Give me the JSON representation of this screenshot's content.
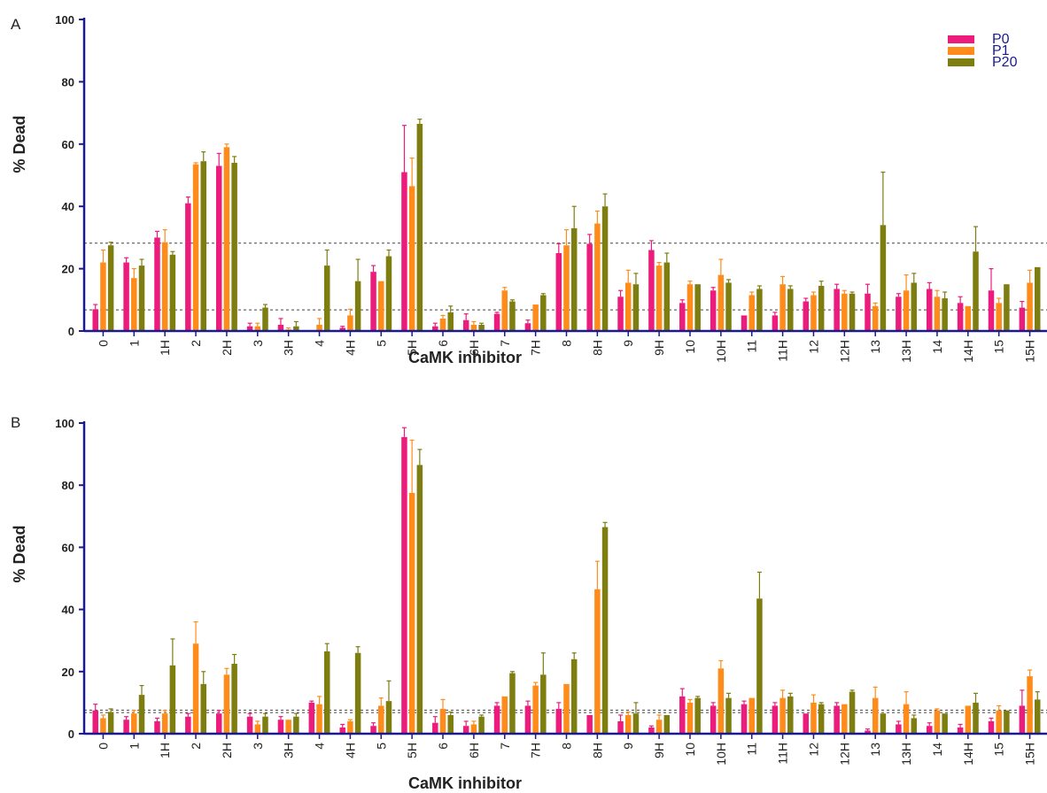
{
  "colors": {
    "axis": "#1a1a8c",
    "series": [
      "#ec1c7c",
      "#ff8c1a",
      "#7d7d10"
    ],
    "error": "#ec1c7c"
  },
  "chart_data": [
    {
      "type": "bar",
      "panel": "A",
      "ylabel": "% Dead",
      "xlabel": "CaMK inhibitor",
      "ylim": [
        0,
        100
      ],
      "yticks": [
        0,
        20,
        40,
        60,
        80,
        100
      ],
      "legend_position": "top-right",
      "reference_lines": [
        28.2,
        6.8
      ],
      "categories": [
        "0",
        "1",
        "1H",
        "2",
        "2H",
        "3",
        "3H",
        "4",
        "4H",
        "5",
        "5H",
        "6",
        "6H",
        "7",
        "7H",
        "8",
        "8H",
        "9",
        "9H",
        "10",
        "10H",
        "11",
        "11H",
        "12",
        "12H",
        "13",
        "13H",
        "14",
        "14H",
        "15",
        "15H"
      ],
      "series": [
        {
          "name": "P0",
          "values": [
            7,
            22,
            30,
            41,
            53,
            1.5,
            2,
            0,
            1,
            19,
            51,
            1.5,
            3.5,
            5.5,
            2.5,
            25,
            28,
            11,
            26,
            9,
            13,
            5,
            5,
            9.5,
            13.5,
            12,
            11,
            13.5,
            9,
            13,
            7.5
          ],
          "errors": [
            1.5,
            1.5,
            2,
            2,
            4,
            1,
            2,
            0,
            0.5,
            2,
            15,
            1,
            2,
            0.5,
            1,
            3,
            3,
            2,
            3,
            1,
            1,
            0,
            1,
            1,
            1.5,
            3,
            1,
            2,
            2,
            7,
            2
          ]
        },
        {
          "name": "P1",
          "values": [
            22,
            17,
            28.5,
            53.5,
            59,
            1.5,
            0.5,
            2,
            5,
            16,
            46.5,
            4,
            2,
            13,
            8.5,
            27.5,
            34.5,
            15.5,
            21,
            15,
            18,
            11.5,
            15,
            11.5,
            12,
            8,
            13,
            11,
            8,
            9,
            15.5
          ],
          "errors": [
            4,
            3,
            4,
            0.5,
            1,
            1,
            0.5,
            2,
            2,
            0,
            9,
            1,
            1,
            1,
            0,
            5,
            4,
            4,
            1,
            1,
            5,
            1,
            2.5,
            1,
            1,
            1,
            5,
            2,
            0,
            1.5,
            4
          ]
        },
        {
          "name": "P20",
          "values": [
            27.5,
            21,
            24.5,
            54.5,
            54,
            7.5,
            1.5,
            21,
            16,
            24,
            66.5,
            6,
            2,
            9.5,
            11.5,
            33,
            40,
            15,
            22,
            15,
            15.5,
            13.5,
            13.5,
            14.5,
            12,
            34,
            15.5,
            10.5,
            25.5,
            15,
            20.5
          ],
          "errors": [
            1,
            2,
            1,
            3,
            2,
            1,
            1.5,
            5,
            7,
            2,
            1.5,
            2,
            0.5,
            0.5,
            0.5,
            7,
            4,
            3.5,
            3,
            0,
            1,
            1,
            1,
            1.5,
            0.5,
            17,
            3,
            2,
            8,
            0,
            0
          ]
        }
      ]
    },
    {
      "type": "bar",
      "panel": "B",
      "ylabel": "% Dead",
      "xlabel": "CaMK inhibitor",
      "ylim": [
        0,
        100
      ],
      "yticks": [
        0,
        20,
        40,
        60,
        80,
        100
      ],
      "reference_lines": [
        7.6,
        6.8
      ],
      "categories": [
        "0",
        "1",
        "1H",
        "2",
        "2H",
        "3",
        "3H",
        "4",
        "4H",
        "5",
        "5H",
        "6",
        "6H",
        "7",
        "7H",
        "8",
        "8H",
        "9",
        "9H",
        "10",
        "10H",
        "11",
        "11H",
        "12",
        "12H",
        "13",
        "13H",
        "14",
        "14H",
        "15",
        "15H"
      ],
      "series": [
        {
          "name": "P0",
          "values": [
            7.5,
            4.5,
            4,
            5.5,
            6.5,
            5.5,
            4.5,
            10,
            2,
            2.5,
            95.5,
            3.5,
            2.5,
            9,
            9,
            8,
            6,
            4,
            2,
            12,
            9,
            9.5,
            9,
            6.5,
            9,
            1,
            3,
            2.5,
            2,
            4,
            9
          ],
          "errors": [
            2,
            1,
            1,
            1,
            1,
            1,
            1,
            0.5,
            1,
            1,
            3,
            2,
            1.5,
            1,
            1.5,
            2,
            0,
            2,
            0.5,
            2.5,
            1,
            1,
            1,
            0,
            1,
            0.5,
            1,
            1,
            1,
            1,
            5
          ]
        },
        {
          "name": "P1",
          "values": [
            5,
            6.5,
            6.5,
            29,
            19,
            3,
            4.5,
            9.5,
            4,
            9,
            77.5,
            8,
            3,
            12,
            15.5,
            16,
            46.5,
            6,
            4.5,
            10,
            21,
            11.5,
            11.5,
            10,
            9.5,
            11.5,
            9.5,
            7.5,
            9,
            7.5,
            18.5
          ],
          "errors": [
            1,
            1,
            1,
            7,
            2,
            1,
            0,
            2.5,
            0.5,
            2.5,
            17,
            3,
            1,
            0,
            1,
            0,
            9,
            1,
            1.5,
            1,
            2.5,
            0,
            2.5,
            2.5,
            0,
            3.5,
            4,
            0.5,
            0,
            1.5,
            2
          ]
        },
        {
          "name": "P20",
          "values": [
            7,
            12.5,
            22,
            16,
            22.5,
            5.5,
            5.5,
            26.5,
            26,
            10.5,
            86.5,
            6,
            5.5,
            19.5,
            19,
            24,
            66.5,
            6.5,
            6,
            11.5,
            11.5,
            43.5,
            12,
            9.5,
            13.5,
            6.5,
            5,
            6.5,
            10,
            7.5,
            11
          ],
          "errors": [
            1,
            3,
            8.5,
            4,
            3,
            1,
            1,
            2.5,
            2,
            6.5,
            5,
            1,
            0.5,
            0.5,
            7,
            2,
            1.5,
            3.5,
            0,
            0.5,
            1.5,
            8.5,
            1,
            0.5,
            0.5,
            0,
            1,
            0,
            3,
            0,
            2.5
          ]
        }
      ]
    }
  ]
}
